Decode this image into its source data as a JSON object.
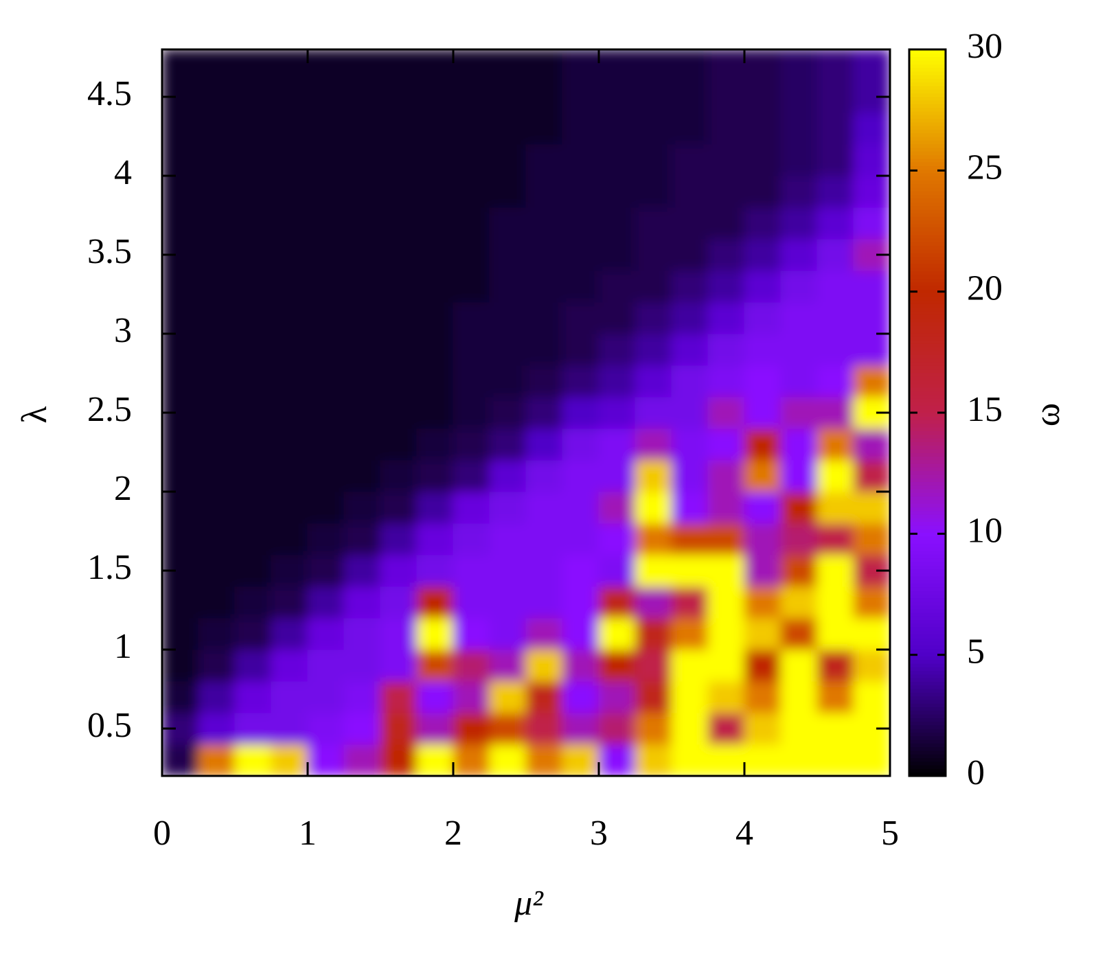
{
  "chart_data": {
    "type": "heatmap",
    "xlabel": "μ²",
    "ylabel": "λ",
    "zlabel": "ω",
    "xlim": [
      0,
      5
    ],
    "xticks": [
      0,
      1,
      2,
      3,
      4,
      5
    ],
    "ylim": [
      0.2,
      4.8
    ],
    "yticks": [
      0.5,
      1,
      1.5,
      2,
      2.5,
      3,
      3.5,
      4,
      4.5
    ],
    "zlim": [
      0,
      30
    ],
    "zticks": [
      0,
      5,
      10,
      15,
      20,
      25,
      30
    ],
    "colormap": [
      "#000000",
      "#5000c8",
      "#8a10ff",
      "#c0204a",
      "#c02800",
      "#e07800",
      "#ffff00"
    ],
    "x": [
      0.125,
      0.375,
      0.625,
      0.875,
      1.125,
      1.375,
      1.625,
      1.875,
      2.125,
      2.375,
      2.625,
      2.875,
      3.125,
      3.375,
      3.625,
      3.875,
      4.125,
      4.375,
      4.625,
      4.875
    ],
    "y": [
      0.3,
      0.5,
      0.7,
      0.9,
      1.1,
      1.3,
      1.5,
      1.7,
      1.9,
      2.1,
      2.3,
      2.5,
      2.7,
      2.9,
      3.1,
      3.3,
      3.5,
      3.7,
      3.9,
      4.1,
      4.3,
      4.5,
      4.7
    ],
    "z": [
      [
        2,
        25,
        30,
        28,
        10,
        12,
        20,
        30,
        25,
        30,
        25,
        28,
        10,
        28,
        30,
        30,
        30,
        30,
        30,
        30
      ],
      [
        3,
        6,
        8,
        8,
        9,
        10,
        18,
        12,
        20,
        22,
        15,
        12,
        14,
        25,
        30,
        15,
        28,
        30,
        30,
        30
      ],
      [
        1.5,
        4,
        7,
        8,
        8,
        9,
        15,
        10,
        12,
        28,
        18,
        10,
        12,
        18,
        30,
        28,
        25,
        30,
        25,
        30
      ],
      [
        1,
        2,
        4,
        7,
        8,
        8,
        9,
        22,
        14,
        12,
        28,
        12,
        20,
        15,
        30,
        30,
        20,
        30,
        18,
        28
      ],
      [
        1,
        1.5,
        2,
        4,
        7,
        8,
        9,
        30,
        10,
        9,
        12,
        10,
        30,
        18,
        25,
        30,
        28,
        22,
        30,
        30
      ],
      [
        1,
        1,
        1.5,
        2,
        4,
        7,
        8,
        20,
        9,
        9,
        9,
        10,
        18,
        12,
        15,
        30,
        25,
        28,
        30,
        25
      ],
      [
        1,
        1,
        1,
        1.5,
        2,
        4,
        7,
        8,
        9,
        9,
        9,
        10,
        9,
        30,
        30,
        30,
        12,
        22,
        30,
        15
      ],
      [
        1,
        1,
        1,
        1,
        1.5,
        2,
        4,
        7,
        8,
        9,
        9,
        9,
        10,
        25,
        22,
        22,
        12,
        14,
        15,
        25
      ],
      [
        1,
        1,
        1,
        1,
        1,
        1.5,
        2,
        4,
        7,
        8,
        9,
        9,
        12,
        30,
        10,
        12,
        10,
        20,
        28,
        28
      ],
      [
        1,
        1,
        1,
        1,
        1,
        1,
        1.5,
        2,
        3,
        6,
        8,
        9,
        9,
        28,
        9,
        12,
        25,
        10,
        30,
        15
      ],
      [
        1,
        1,
        1,
        1,
        1,
        1,
        1,
        1.5,
        2,
        3,
        5,
        8,
        9,
        12,
        9,
        10,
        20,
        10,
        25,
        12
      ],
      [
        1,
        1,
        1,
        1,
        1,
        1,
        1,
        1,
        1.5,
        2,
        3,
        5,
        6,
        8,
        8,
        12,
        10,
        12,
        12,
        30
      ],
      [
        1,
        1,
        1,
        1,
        1,
        1,
        1,
        1,
        1.5,
        1.5,
        2,
        3,
        4,
        6,
        8,
        9,
        10,
        9,
        10,
        25
      ],
      [
        1,
        1,
        1,
        1,
        1,
        1,
        1,
        1,
        1.5,
        1.5,
        1.5,
        2,
        3,
        4,
        6,
        8,
        9,
        9,
        9,
        9
      ],
      [
        1,
        1,
        1,
        1,
        1,
        1,
        1,
        1,
        1.5,
        1.5,
        1.5,
        2,
        2,
        3,
        4,
        6,
        8,
        9,
        9,
        9
      ],
      [
        1,
        1,
        1,
        1,
        1,
        1,
        1,
        1,
        1,
        1.5,
        1.5,
        1.5,
        2,
        2,
        3,
        4,
        6,
        8,
        9,
        9
      ],
      [
        1,
        1,
        1,
        1,
        1,
        1,
        1,
        1,
        1,
        1.5,
        1.5,
        1.5,
        1.5,
        2,
        2,
        3,
        4,
        6,
        8,
        12
      ],
      [
        1,
        1,
        1,
        1,
        1,
        1,
        1,
        1,
        1,
        1.5,
        1.5,
        1.5,
        1.5,
        2,
        2,
        2,
        3,
        4,
        6,
        9
      ],
      [
        1,
        1,
        1,
        1,
        1,
        1,
        1,
        1,
        1,
        1,
        1.5,
        1.5,
        1.5,
        1.5,
        2,
        2,
        2,
        3,
        4,
        7
      ],
      [
        1,
        1,
        1,
        1,
        1,
        1,
        1,
        1,
        1,
        1,
        1.5,
        1.5,
        1.5,
        1.5,
        2,
        2,
        2,
        2.5,
        3,
        6
      ],
      [
        1,
        1,
        1,
        1,
        1,
        1,
        1,
        1,
        1,
        1,
        1,
        1.5,
        1.5,
        1.5,
        1.5,
        2,
        2,
        2.5,
        3,
        5
      ],
      [
        1,
        1,
        1,
        1,
        1,
        1,
        1,
        1,
        1,
        1,
        1,
        1.5,
        1.5,
        1.5,
        1.5,
        2,
        2,
        2.5,
        3,
        4
      ],
      [
        1,
        1,
        1,
        1,
        1,
        1,
        1,
        1,
        1,
        1,
        1,
        1.5,
        1.5,
        1.5,
        1.5,
        2,
        2,
        2.5,
        3,
        4
      ]
    ]
  }
}
